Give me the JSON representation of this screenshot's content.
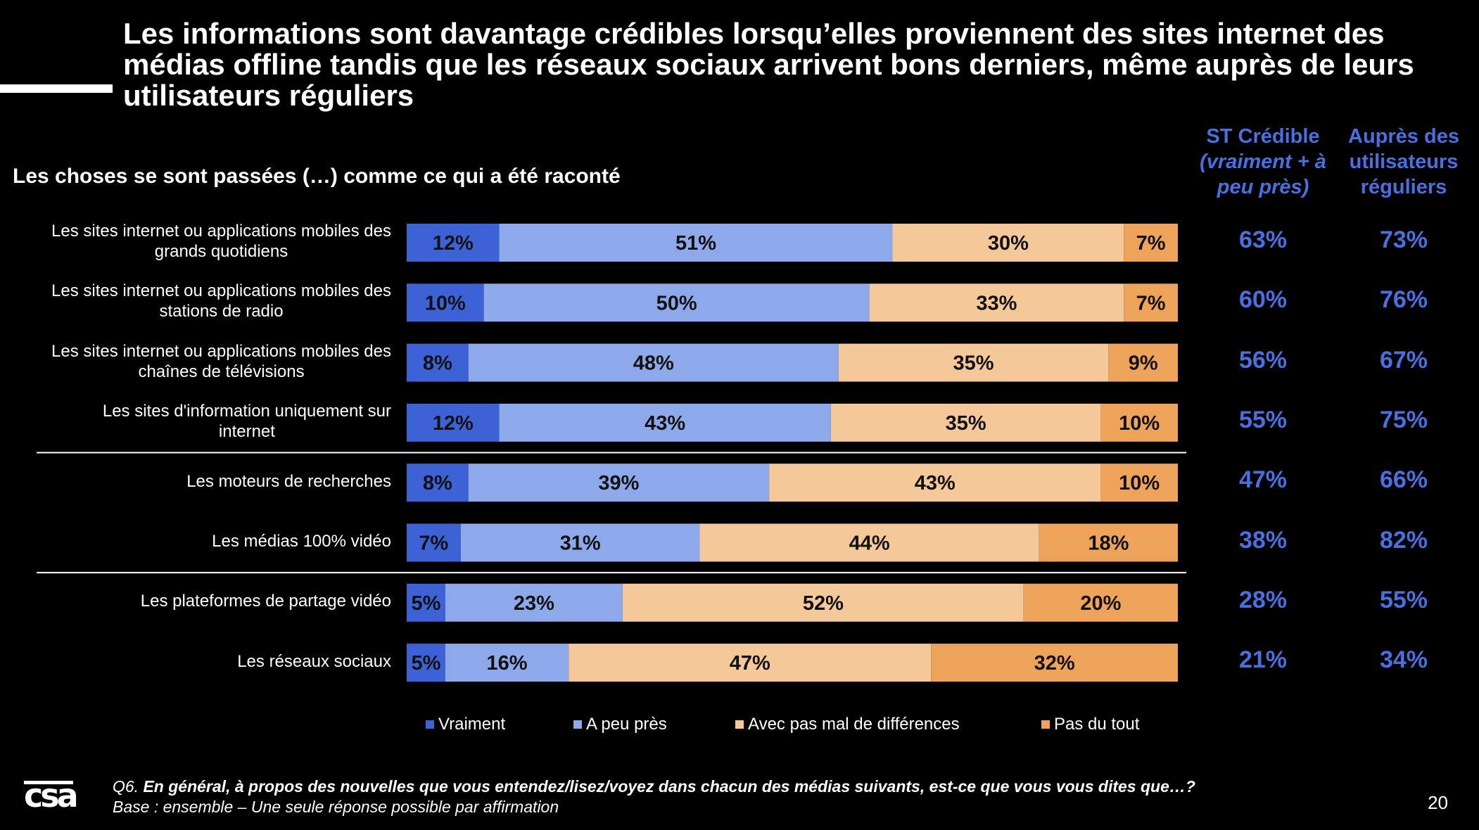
{
  "title": "Les informations sont davantage crédibles lorsqu’elles proviennent des sites internet des médias offline tandis que les réseaux sociaux arrivent bons derniers, même auprès de leurs utilisateurs réguliers",
  "subtitle": "Les choses se sont passées (…) comme ce qui a été raconté",
  "columns": {
    "st_credible": [
      "ST Crédible",
      "(vraiment + à",
      "peu près)"
    ],
    "users": [
      "Auprès des",
      "utilisateurs",
      "réguliers"
    ]
  },
  "colors": {
    "vraiment": "#3d62d6",
    "a_peu_pres": "#8ea9ea",
    "avec_differences": "#f5c89a",
    "pas_du_tout": "#eea35b",
    "accent_text": "#4a6fe0",
    "label_text": "#111111"
  },
  "chart_data": {
    "type": "bar",
    "orientation": "horizontal",
    "stacked": true,
    "normalized": true,
    "categories": [
      "Les sites internet ou applications mobiles des grands quotidiens",
      "Les sites internet ou applications mobiles des stations de radio",
      "Les sites internet ou applications mobiles des chaînes de télévisions",
      "Les sites d'information uniquement sur internet",
      "Les moteurs de recherches",
      "Les médias 100% vidéo",
      "Les plateformes de partage vidéo",
      "Les réseaux sociaux"
    ],
    "category_lines": [
      [
        "Les sites internet ou applications mobiles des",
        "grands quotidiens"
      ],
      [
        "Les sites internet ou applications mobiles des",
        "stations de radio"
      ],
      [
        "Les sites internet ou applications mobiles des",
        "chaînes de télévisions"
      ],
      [
        "Les sites d'information uniquement sur",
        "internet"
      ],
      [
        "Les moteurs de recherches"
      ],
      [
        "Les médias 100% vidéo"
      ],
      [
        "Les plateformes de partage vidéo"
      ],
      [
        "Les réseaux sociaux"
      ]
    ],
    "series": [
      {
        "name": "Vraiment",
        "values": [
          12,
          10,
          8,
          12,
          8,
          7,
          5,
          5
        ]
      },
      {
        "name": "A peu près",
        "values": [
          51,
          50,
          48,
          43,
          39,
          31,
          23,
          16
        ]
      },
      {
        "name": "Avec pas mal de différences",
        "values": [
          30,
          33,
          35,
          35,
          43,
          44,
          52,
          47
        ]
      },
      {
        "name": "Pas du tout",
        "values": [
          7,
          7,
          9,
          10,
          10,
          18,
          20,
          32
        ]
      }
    ],
    "value_suffix": "%",
    "group_separators_after": [
      3,
      5
    ],
    "st_credible": [
      "63%",
      "60%",
      "56%",
      "55%",
      "47%",
      "38%",
      "28%",
      "21%"
    ],
    "users_reguliers": [
      "73%",
      "76%",
      "67%",
      "75%",
      "66%",
      "82%",
      "55%",
      "34%"
    ],
    "legend_position": "bottom"
  },
  "footnote": {
    "q_prefix": "Q6. ",
    "question": "En général, à propos des nouvelles que vous entendez/lisez/voyez dans chacun des médias suivants, est-ce que vous vous dites que…?",
    "base": "Base : ensemble – Une seule réponse possible par affirmation"
  },
  "logo_text": "csa",
  "page_number": "20"
}
